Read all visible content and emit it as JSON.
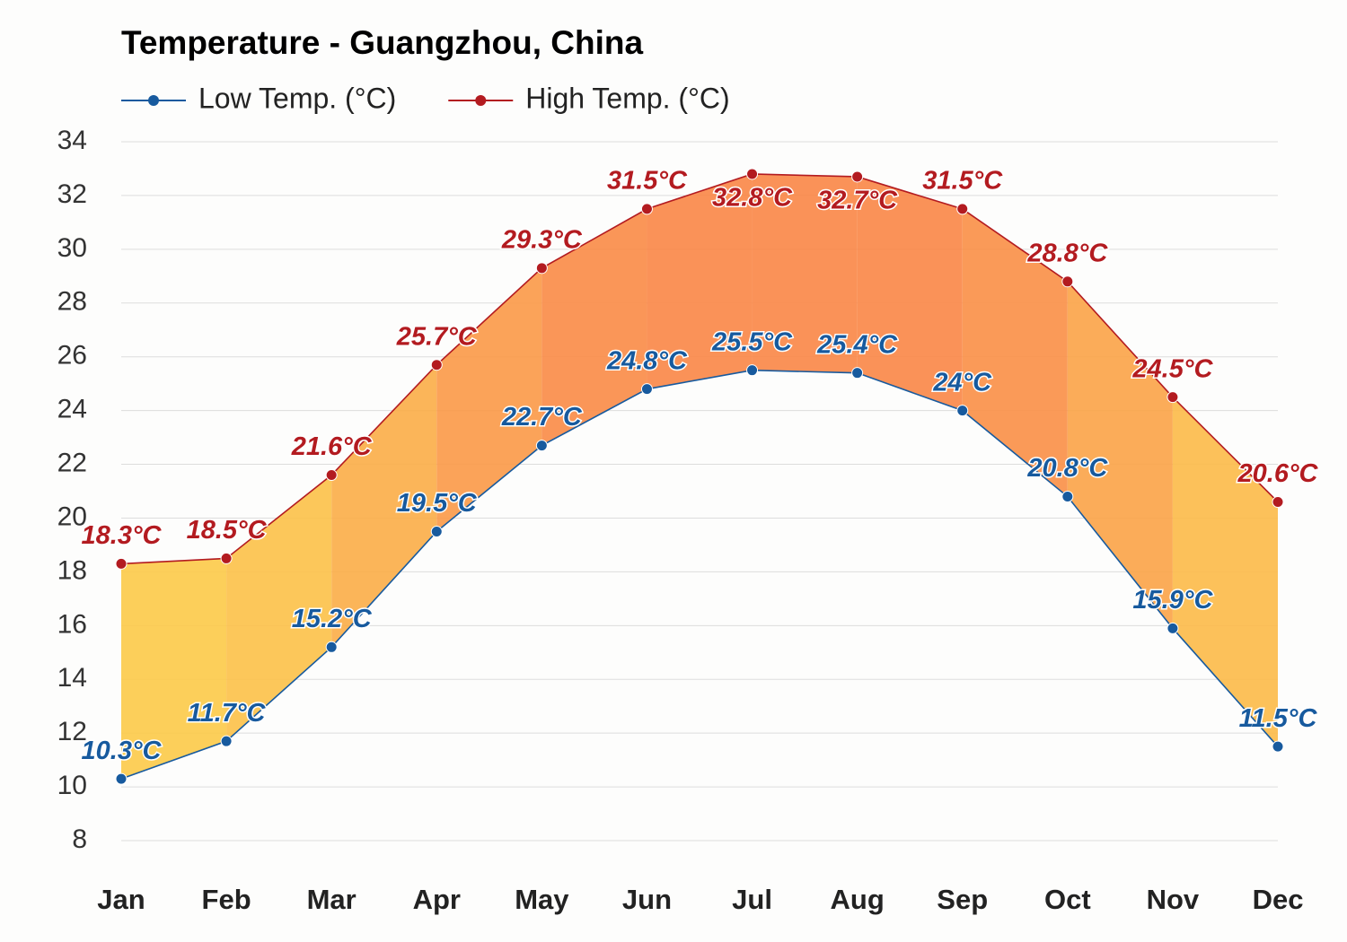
{
  "chart_data": {
    "type": "line",
    "title": "Temperature - Guangzhou, China",
    "categories": [
      "Jan",
      "Feb",
      "Mar",
      "Apr",
      "May",
      "Jun",
      "Jul",
      "Aug",
      "Sep",
      "Oct",
      "Nov",
      "Dec"
    ],
    "series": [
      {
        "name": "Low Temp. (°C)",
        "color": "#175a9e",
        "values": [
          10.3,
          11.7,
          15.2,
          19.5,
          22.7,
          24.8,
          25.5,
          25.4,
          24,
          20.8,
          15.9,
          11.5
        ],
        "value_labels": [
          "10.3°C",
          "11.7°C",
          "15.2°C",
          "19.5°C",
          "22.7°C",
          "24.8°C",
          "25.5°C",
          "25.4°C",
          "24°C",
          "20.8°C",
          "15.9°C",
          "11.5°C"
        ]
      },
      {
        "name": "High Temp. (°C)",
        "color": "#b31b20",
        "values": [
          18.3,
          18.5,
          21.6,
          25.7,
          29.3,
          31.5,
          32.8,
          32.7,
          31.5,
          28.8,
          24.5,
          20.6
        ],
        "value_labels": [
          "18.3°C",
          "18.5°C",
          "21.6°C",
          "25.7°C",
          "29.3°C",
          "31.5°C",
          "32.8°C",
          "32.7°C",
          "31.5°C",
          "28.8°C",
          "24.5°C",
          "20.6°C"
        ]
      }
    ],
    "ylim": [
      7,
      34
    ],
    "yticks": [
      8,
      10,
      12,
      14,
      16,
      18,
      20,
      22,
      24,
      26,
      28,
      30,
      32,
      34
    ],
    "grid": true
  }
}
